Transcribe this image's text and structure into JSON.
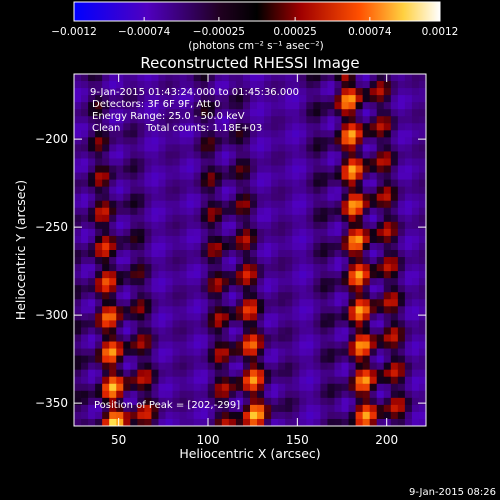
{
  "chart_data": {
    "type": "heatmap",
    "title": "Reconstructed RHESSI Image",
    "xlabel": "Heliocentric X (arcsec)",
    "ylabel": "Heliocentric Y (arcsec)",
    "xlim": [
      25,
      222
    ],
    "ylim": [
      -363,
      -163
    ],
    "x_ticks": [
      50,
      100,
      150,
      200
    ],
    "x_tick_labels": [
      "50",
      "100",
      "150",
      "200"
    ],
    "y_ticks": [
      -350,
      -300,
      -250,
      -200
    ],
    "y_tick_labels": [
      "−350",
      "−300",
      "−250",
      "−200"
    ],
    "colorbar": {
      "range": [
        -0.0012,
        0.0012
      ],
      "ticks": [
        -0.0012,
        -0.00074,
        -0.00025,
        0.00025,
        0.00074,
        0.0012
      ],
      "tick_labels": [
        "−0.0012",
        "−0.00074",
        "−0.00025",
        "0.00025",
        "0.00074",
        "0.0012"
      ],
      "unit_label": "(photons cm⁻² s⁻¹ asec⁻²)",
      "colors": [
        "#0000ff",
        "#6000b0",
        "#000000",
        "#a00000",
        "#ff5000",
        "#ffd040",
        "#ffffff"
      ]
    },
    "annotations": {
      "time_range": "9-Jan-2015 01:43:24.000 to 01:45:36.000",
      "detectors": "Detectors: 3F 6F 9F, Att 0",
      "energy_range": "Energy Range: 25.0 - 50.0 keV",
      "clean": "Clean",
      "total_counts": "Total counts: 1.18E+03",
      "peak_position": "Position of Peak = [202,-299]"
    },
    "peak": [
      202,
      -299
    ],
    "grid": false
  },
  "footer_timestamp": "9-Jan-2015 08:26"
}
